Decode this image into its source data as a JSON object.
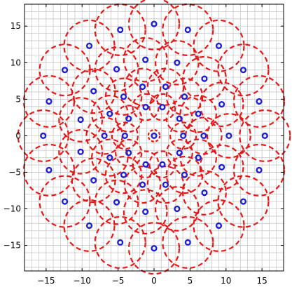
{
  "chart_data": {
    "type": "scatter",
    "title": "",
    "xlabel": "",
    "ylabel": "",
    "xlim": [
      -18,
      18
    ],
    "ylim": [
      -18.5,
      18
    ],
    "grid": true,
    "minor_grid_step": 1,
    "xticks": [
      -15,
      -10,
      -5,
      0,
      5,
      10,
      15
    ],
    "yticks": [
      -15,
      -10,
      -5,
      0,
      5,
      10,
      15
    ],
    "xtick_labels": [
      "−15",
      "−10",
      "−5",
      "0",
      "5",
      "10",
      "15"
    ],
    "ytick_labels": [
      "−15",
      "−10",
      "−5",
      "0",
      "5",
      "10",
      "15"
    ],
    "colors": {
      "grid": "#c8c8c8",
      "circle": "#e81818",
      "marker": "#1f1fd8",
      "axis": "#000000"
    },
    "points": [
      {
        "x": 0,
        "y": 0,
        "r": 0.8
      },
      {
        "x": 1.16,
        "y": 3.92,
        "r": 1.8
      },
      {
        "x": 3.53,
        "y": 2.34,
        "r": 1.8
      },
      {
        "x": 4.05,
        "y": 0,
        "r": 1.8
      },
      {
        "x": 3.53,
        "y": -2.34,
        "r": 1.8
      },
      {
        "x": 1.16,
        "y": -3.92,
        "r": 1.8
      },
      {
        "x": -1.16,
        "y": -3.92,
        "r": 1.8
      },
      {
        "x": -3.53,
        "y": -2.34,
        "r": 1.8
      },
      {
        "x": -4.05,
        "y": 0,
        "r": 1.8
      },
      {
        "x": -3.53,
        "y": 2.34,
        "r": 1.8
      },
      {
        "x": -1.16,
        "y": 3.92,
        "r": 1.8
      },
      {
        "x": 1.6,
        "y": 6.7,
        "r": 2.5
      },
      {
        "x": 4.23,
        "y": 5.35,
        "r": 2.5
      },
      {
        "x": 6.15,
        "y": 3.0,
        "r": 2.5
      },
      {
        "x": 6.9,
        "y": 0,
        "r": 2.5
      },
      {
        "x": 6.15,
        "y": -3.0,
        "r": 2.5
      },
      {
        "x": 4.23,
        "y": -5.35,
        "r": 2.5
      },
      {
        "x": 1.6,
        "y": -6.7,
        "r": 2.5
      },
      {
        "x": -1.6,
        "y": -6.7,
        "r": 2.5
      },
      {
        "x": -4.23,
        "y": -5.35,
        "r": 2.5
      },
      {
        "x": -6.15,
        "y": -3.0,
        "r": 2.5
      },
      {
        "x": -6.9,
        "y": 0,
        "r": 2.5
      },
      {
        "x": -6.15,
        "y": 3.0,
        "r": 2.5
      },
      {
        "x": -4.23,
        "y": 5.35,
        "r": 2.5
      },
      {
        "x": -1.6,
        "y": 6.7,
        "r": 2.5
      },
      {
        "x": -1.2,
        "y": 10.4,
        "r": 3.0
      },
      {
        "x": 3.2,
        "y": 10.0,
        "r": 3.0
      },
      {
        "x": 7.0,
        "y": 7.8,
        "r": 3.0
      },
      {
        "x": 9.4,
        "y": 4.3,
        "r": 3.0
      },
      {
        "x": 10.4,
        "y": 0,
        "r": 3.0
      },
      {
        "x": 9.4,
        "y": -4.3,
        "r": 3.0
      },
      {
        "x": 7.0,
        "y": -7.8,
        "r": 3.0
      },
      {
        "x": 3.2,
        "y": -10.0,
        "r": 3.0
      },
      {
        "x": -1.2,
        "y": -10.4,
        "r": 3.0
      },
      {
        "x": -5.2,
        "y": -9.1,
        "r": 3.0
      },
      {
        "x": -8.4,
        "y": -6.1,
        "r": 3.0
      },
      {
        "x": -10.2,
        "y": -2.2,
        "r": 3.0
      },
      {
        "x": -10.2,
        "y": 2.2,
        "r": 3.0
      },
      {
        "x": -8.4,
        "y": 6.1,
        "r": 3.0
      },
      {
        "x": -5.2,
        "y": 9.1,
        "r": 3.0
      },
      {
        "x": 0,
        "y": 15.3,
        "r": 3.5
      },
      {
        "x": 4.7,
        "y": 14.5,
        "r": 3.5
      },
      {
        "x": 9.0,
        "y": 12.3,
        "r": 3.5
      },
      {
        "x": 12.4,
        "y": 9.0,
        "r": 3.5
      },
      {
        "x": 14.6,
        "y": 4.7,
        "r": 3.5
      },
      {
        "x": 15.4,
        "y": 0,
        "r": 3.5
      },
      {
        "x": 14.6,
        "y": -4.7,
        "r": 3.5
      },
      {
        "x": 12.4,
        "y": -9.0,
        "r": 3.5
      },
      {
        "x": 9.0,
        "y": -12.3,
        "r": 3.5
      },
      {
        "x": 4.7,
        "y": -14.6,
        "r": 3.5
      },
      {
        "x": 0,
        "y": -15.4,
        "r": 3.5
      },
      {
        "x": -4.7,
        "y": -14.6,
        "r": 3.5
      },
      {
        "x": -9.0,
        "y": -12.3,
        "r": 3.5
      },
      {
        "x": -12.4,
        "y": -9.0,
        "r": 3.5
      },
      {
        "x": -14.6,
        "y": -4.7,
        "r": 3.5
      },
      {
        "x": -15.4,
        "y": 0,
        "r": 3.5
      },
      {
        "x": -14.6,
        "y": 4.7,
        "r": 3.5
      },
      {
        "x": -12.4,
        "y": 9.0,
        "r": 3.5
      },
      {
        "x": -9.0,
        "y": 12.3,
        "r": 3.5
      },
      {
        "x": -4.7,
        "y": 14.5,
        "r": 3.5
      }
    ]
  }
}
